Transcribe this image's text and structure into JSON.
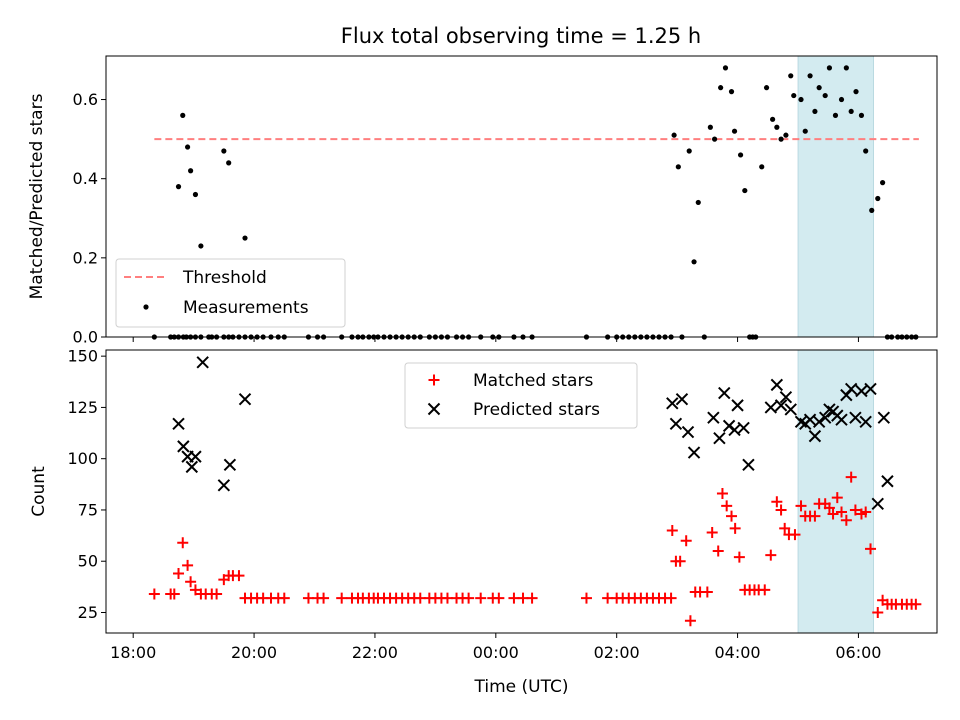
{
  "chart_data": [
    {
      "type": "scatter",
      "title": "Flux total observing time = 1.25 h",
      "xlabel": "",
      "ylabel": "Matched/Predicted stars",
      "x_unit": "hours since 18:00 UTC",
      "xlim": [
        -0.45,
        13.3
      ],
      "ylim": [
        0,
        0.71
      ],
      "yticks": [
        0.0,
        0.2,
        0.4,
        0.6
      ],
      "yticklabels": [
        "0.0",
        "0.2",
        "0.4",
        "0.6"
      ],
      "highlight_span": [
        11.0,
        12.25
      ],
      "highlight_color": "#d3ebf0",
      "legend_position": "lower-left",
      "series": [
        {
          "name": "Threshold",
          "style": "dashed-line",
          "color": "#ff7f7f",
          "x": [
            0.35,
            13.0
          ],
          "y": [
            0.5,
            0.5
          ]
        },
        {
          "name": "Measurements",
          "style": "dot",
          "color": "#000000",
          "x": [
            0.35,
            0.62,
            0.68,
            0.75,
            0.83,
            0.88,
            0.95,
            1.03,
            1.12,
            1.25,
            1.3,
            1.38,
            1.5,
            1.58,
            1.65,
            1.75,
            1.85,
            1.95,
            2.05,
            2.15,
            2.28,
            2.4,
            2.5,
            2.9,
            3.05,
            3.15,
            3.45,
            3.62,
            3.72,
            3.8,
            3.9,
            3.98,
            4.05,
            4.15,
            4.25,
            4.35,
            4.45,
            4.55,
            4.65,
            4.75,
            4.9,
            5.0,
            5.1,
            5.2,
            5.35,
            5.45,
            5.55,
            5.75,
            5.95,
            6.05,
            6.3,
            6.45,
            6.6,
            7.5,
            7.85,
            8.0,
            8.1,
            8.2,
            8.3,
            8.4,
            8.5,
            8.6,
            8.7,
            8.8,
            8.9,
            8.95,
            9.02,
            9.08,
            9.2,
            9.28,
            9.35,
            9.45,
            9.55,
            9.62,
            9.72,
            9.8,
            9.9,
            9.95,
            10.05,
            10.12,
            10.2,
            10.25,
            10.3,
            10.4,
            10.48,
            10.58,
            10.65,
            10.72,
            10.8,
            10.88,
            10.93,
            11.05,
            11.12,
            11.2,
            11.28,
            11.35,
            11.45,
            11.52,
            11.62,
            11.72,
            11.8,
            11.88,
            11.96,
            12.05,
            12.12,
            12.22,
            12.32,
            12.4,
            12.48,
            12.55,
            12.65,
            12.72,
            12.8,
            12.88,
            12.95,
            0.75,
            0.82,
            0.9,
            0.95,
            1.03,
            1.12,
            1.5,
            1.58,
            1.85
          ],
          "y": [
            0,
            0,
            0,
            0,
            0,
            0,
            0,
            0,
            0,
            0,
            0,
            0,
            0,
            0,
            0,
            0,
            0,
            0,
            0,
            0,
            0,
            0,
            0,
            0,
            0,
            0,
            0,
            0,
            0,
            0,
            0,
            0,
            0,
            0,
            0,
            0,
            0,
            0,
            0,
            0,
            0,
            0,
            0,
            0,
            0,
            0,
            0,
            0,
            0,
            0,
            0,
            0,
            0,
            0,
            0,
            0,
            0,
            0,
            0,
            0,
            0,
            0,
            0,
            0,
            0,
            0.51,
            0.43,
            0,
            0.47,
            0.19,
            0.34,
            0,
            0.53,
            0.5,
            0.63,
            0.68,
            0.62,
            0.52,
            0.46,
            0.37,
            0,
            0,
            0,
            0.43,
            0.63,
            0.55,
            0.53,
            0.5,
            0.51,
            0.66,
            0.61,
            0.6,
            0.52,
            0.66,
            0.57,
            0.63,
            0.61,
            0.68,
            0.56,
            0.6,
            0.68,
            0.57,
            0.62,
            0.56,
            0.47,
            0.32,
            0.35,
            0.39,
            0,
            0,
            0,
            0,
            0,
            0,
            0,
            0.38,
            0.56,
            0.48,
            0.42,
            0.36,
            0.23,
            0.47,
            0.44,
            0.25
          ]
        }
      ]
    },
    {
      "type": "scatter",
      "title": "",
      "xlabel": "Time (UTC)",
      "ylabel": "Count",
      "x_unit": "hours since 18:00 UTC",
      "xlim": [
        -0.45,
        13.3
      ],
      "ylim": [
        15,
        153
      ],
      "xticks": [
        0,
        2,
        4,
        6,
        8,
        10,
        12
      ],
      "xticklabels": [
        "18:00",
        "20:00",
        "22:00",
        "00:00",
        "02:00",
        "04:00",
        "06:00"
      ],
      "yticks": [
        25,
        50,
        75,
        100,
        125,
        150
      ],
      "yticklabels": [
        "25",
        "50",
        "75",
        "100",
        "125",
        "150"
      ],
      "highlight_span": [
        11.0,
        12.25
      ],
      "highlight_color": "#d3ebf0",
      "legend_position": "upper-center",
      "series": [
        {
          "name": "Matched stars",
          "marker": "plus",
          "color": "#ff0000",
          "x": [
            0.35,
            0.62,
            0.68,
            0.75,
            0.82,
            0.9,
            0.95,
            1.03,
            1.12,
            1.2,
            1.3,
            1.38,
            1.5,
            1.58,
            1.65,
            1.75,
            1.85,
            1.95,
            2.05,
            2.15,
            2.28,
            2.4,
            2.5,
            2.9,
            3.05,
            3.15,
            3.45,
            3.62,
            3.72,
            3.8,
            3.9,
            3.98,
            4.05,
            4.15,
            4.25,
            4.35,
            4.45,
            4.55,
            4.65,
            4.75,
            4.9,
            5.0,
            5.1,
            5.2,
            5.35,
            5.45,
            5.55,
            5.75,
            5.95,
            6.05,
            6.3,
            6.45,
            6.6,
            7.5,
            7.85,
            8.0,
            8.1,
            8.2,
            8.3,
            8.4,
            8.5,
            8.6,
            8.7,
            8.8,
            8.9,
            8.92,
            8.98,
            9.05,
            9.15,
            9.22,
            9.3,
            9.38,
            9.5,
            9.58,
            9.68,
            9.75,
            9.82,
            9.9,
            9.96,
            10.03,
            10.12,
            10.2,
            10.28,
            10.35,
            10.45,
            10.55,
            10.65,
            10.72,
            10.78,
            10.85,
            10.95,
            11.05,
            11.12,
            11.2,
            11.28,
            11.35,
            11.45,
            11.52,
            11.58,
            11.65,
            11.72,
            11.8,
            11.88,
            11.95,
            12.05,
            12.12,
            12.2,
            12.32,
            12.4,
            12.48,
            12.55,
            12.62,
            12.72,
            12.8,
            12.88,
            12.95
          ],
          "y": [
            34,
            34,
            34,
            44,
            59,
            48,
            40,
            36,
            34,
            34,
            34,
            34,
            41,
            43,
            43,
            43,
            32,
            32,
            32,
            32,
            32,
            32,
            32,
            32,
            32,
            32,
            32,
            32,
            32,
            32,
            32,
            32,
            32,
            32,
            32,
            32,
            32,
            32,
            32,
            32,
            32,
            32,
            32,
            32,
            32,
            32,
            32,
            32,
            32,
            32,
            32,
            32,
            32,
            32,
            32,
            32,
            32,
            32,
            32,
            32,
            32,
            32,
            32,
            32,
            32,
            65,
            50,
            50,
            60,
            21,
            35,
            35,
            35,
            64,
            55,
            83,
            77,
            72,
            66,
            52,
            36,
            36,
            36,
            36,
            36,
            53,
            79,
            75,
            66,
            63,
            63,
            77,
            72,
            72,
            72,
            78,
            78,
            76,
            73,
            81,
            74,
            70,
            91,
            75,
            73,
            74,
            56,
            25,
            31,
            29,
            29,
            29,
            29,
            29,
            29,
            29
          ]
        },
        {
          "name": "Predicted stars",
          "marker": "x",
          "color": "#000000",
          "x": [
            0.75,
            0.83,
            0.9,
            0.97,
            1.03,
            1.15,
            1.5,
            1.6,
            1.85,
            8.92,
            8.98,
            9.08,
            9.18,
            9.28,
            9.6,
            9.7,
            9.78,
            9.86,
            9.95,
            10.0,
            10.1,
            10.18,
            10.55,
            10.65,
            10.72,
            10.8,
            10.88,
            11.05,
            11.12,
            11.2,
            11.28,
            11.35,
            11.45,
            11.52,
            11.58,
            11.65,
            11.72,
            11.8,
            11.88,
            11.95,
            12.05,
            12.12,
            12.2,
            12.32,
            12.42,
            12.48
          ],
          "y": [
            117,
            106,
            101,
            96,
            101,
            147,
            87,
            97,
            129,
            127,
            117,
            129,
            113,
            103,
            120,
            110,
            132,
            116,
            114,
            126,
            115,
            97,
            125,
            136,
            126,
            130,
            124,
            118,
            117,
            119,
            111,
            118,
            120,
            124,
            123,
            121,
            119,
            131,
            134,
            120,
            133,
            118,
            134,
            78,
            120,
            89
          ]
        }
      ]
    }
  ]
}
